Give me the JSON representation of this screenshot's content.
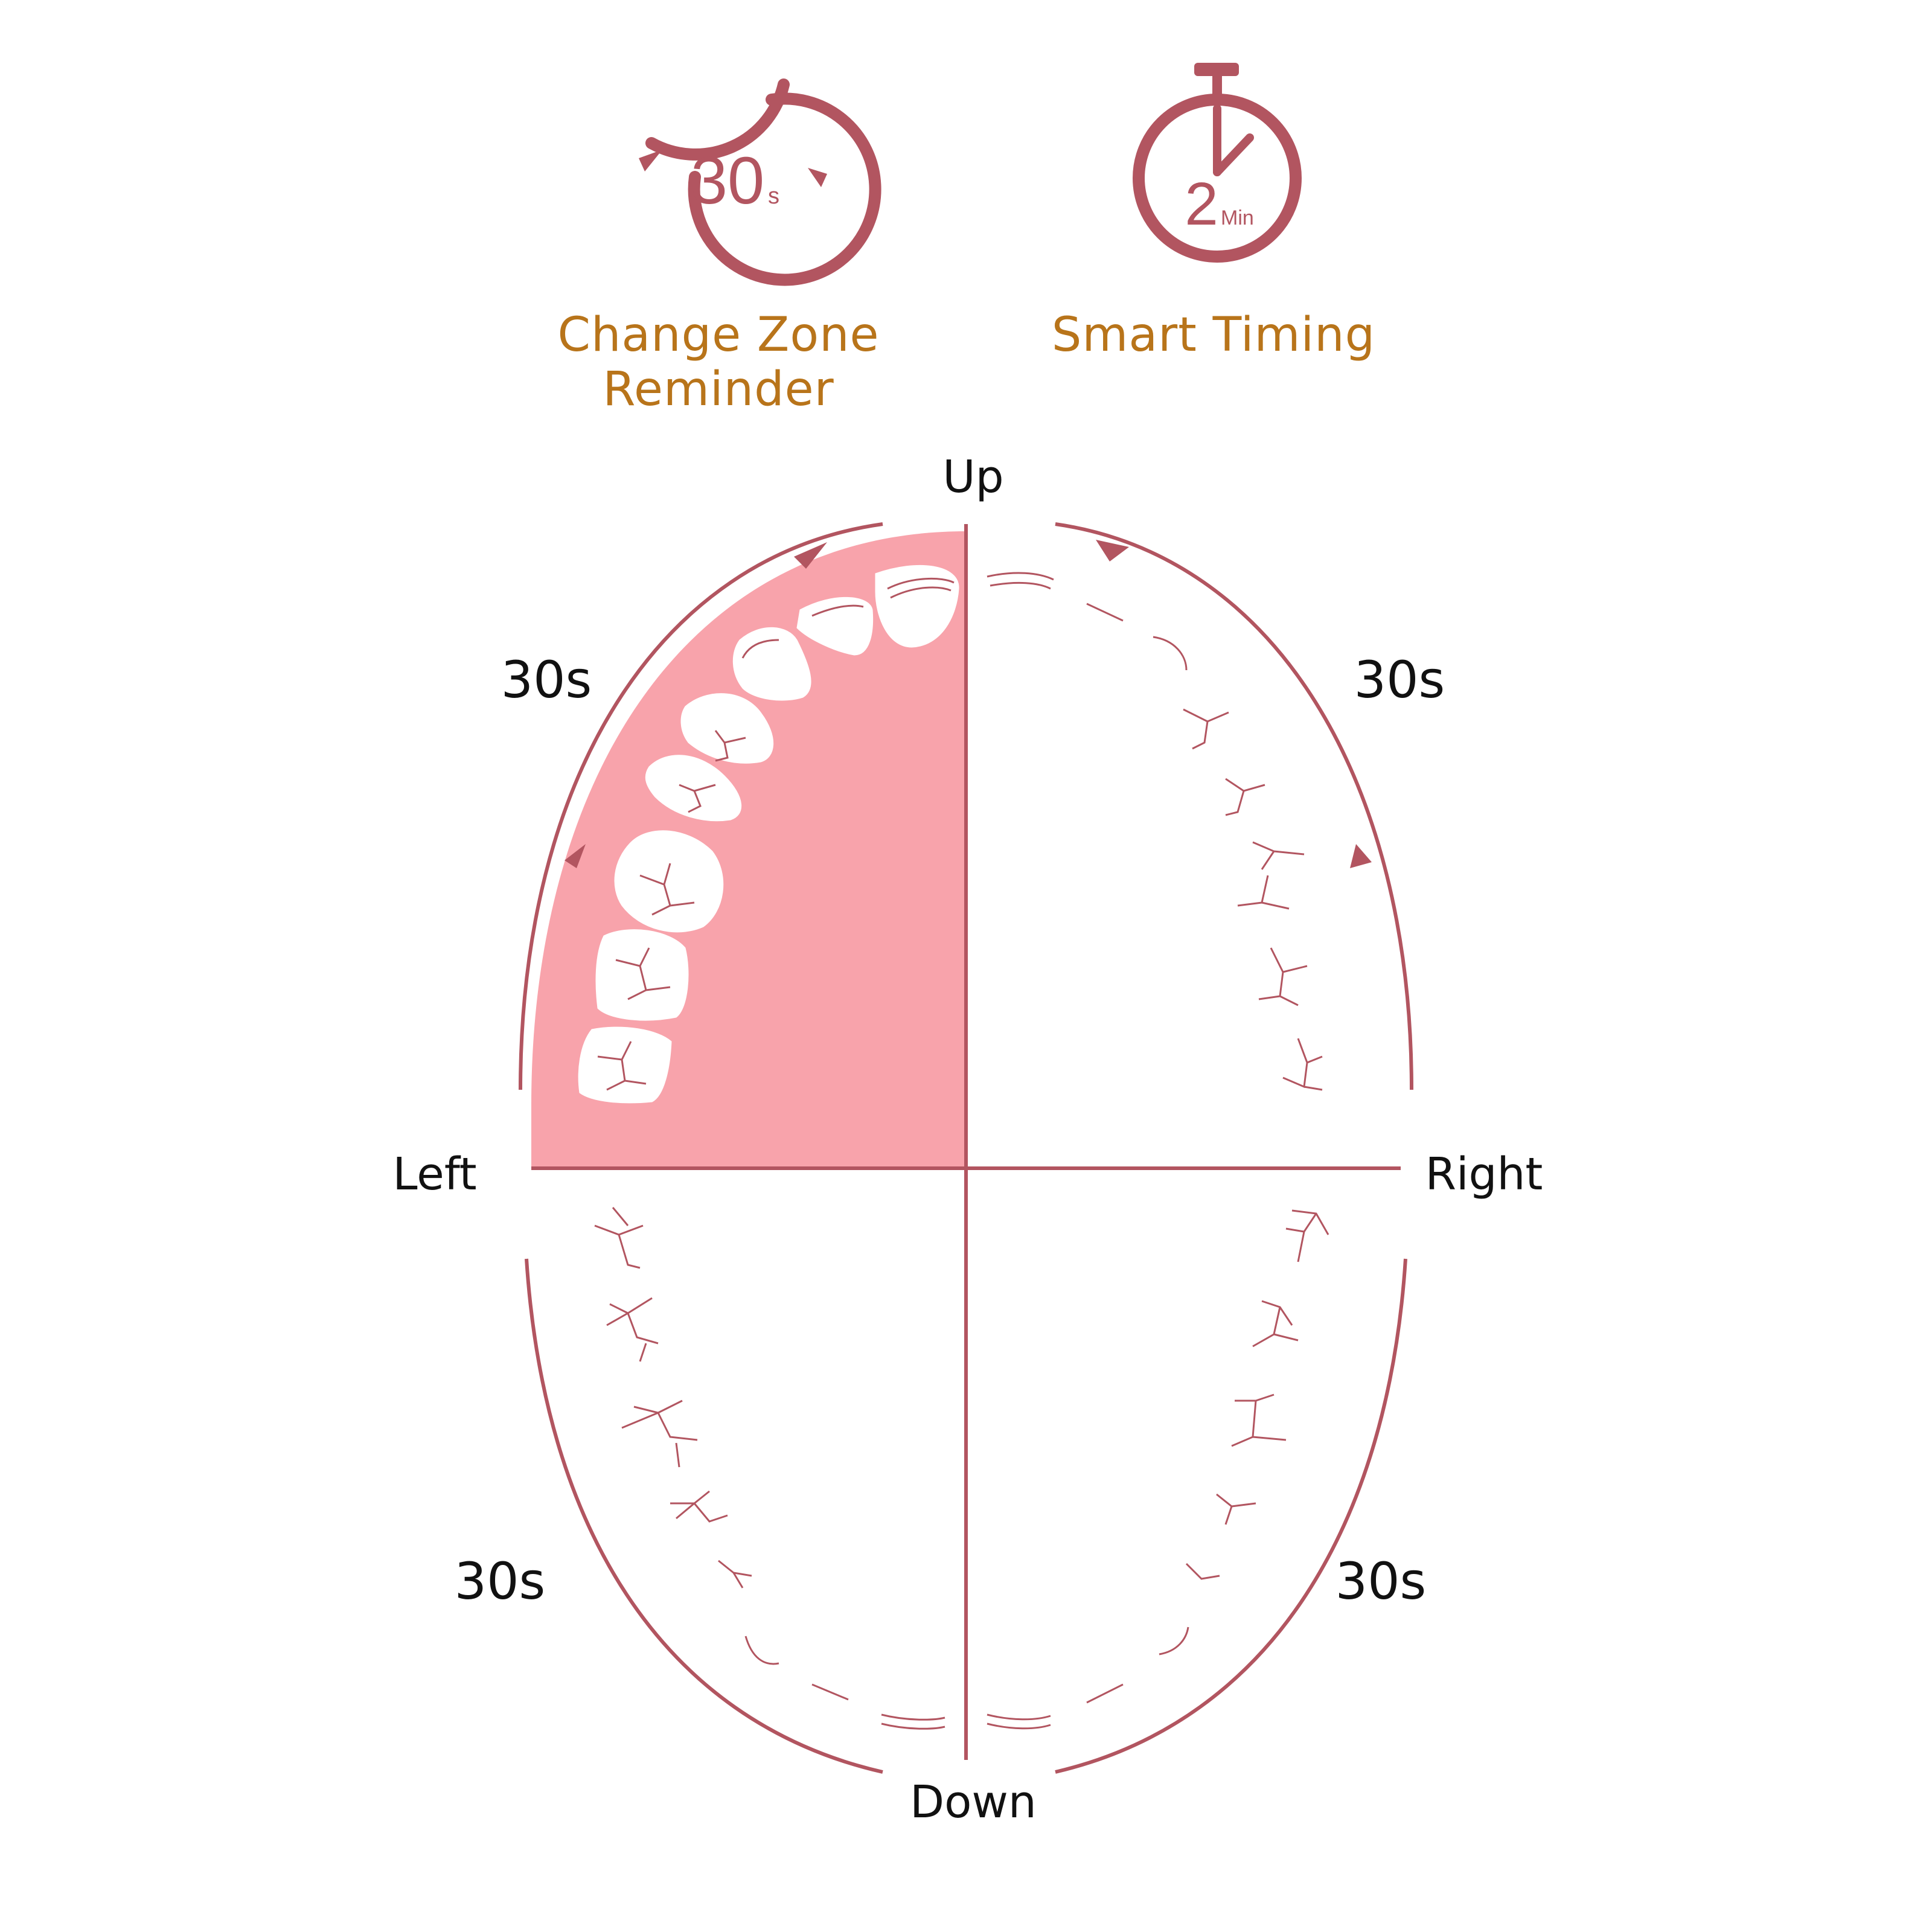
{
  "features": [
    {
      "icon": "cycle-30s-icon",
      "icon_main": "30",
      "icon_sub": "s",
      "label": "Change Zone Reminder"
    },
    {
      "icon": "stopwatch-2min-icon",
      "icon_main": "2",
      "icon_sub": "Min",
      "label": "Smart Timing"
    }
  ],
  "zones": {
    "up": "Up",
    "down": "Down",
    "left": "Left",
    "right": "Right",
    "upper_left_time": "30s",
    "upper_right_time": "30s",
    "lower_left_time": "30s",
    "lower_right_time": "30s"
  },
  "colors": {
    "accent": "#b25560",
    "label": "#b8741a",
    "highlight": "#f8a3ab",
    "text": "#111111"
  }
}
